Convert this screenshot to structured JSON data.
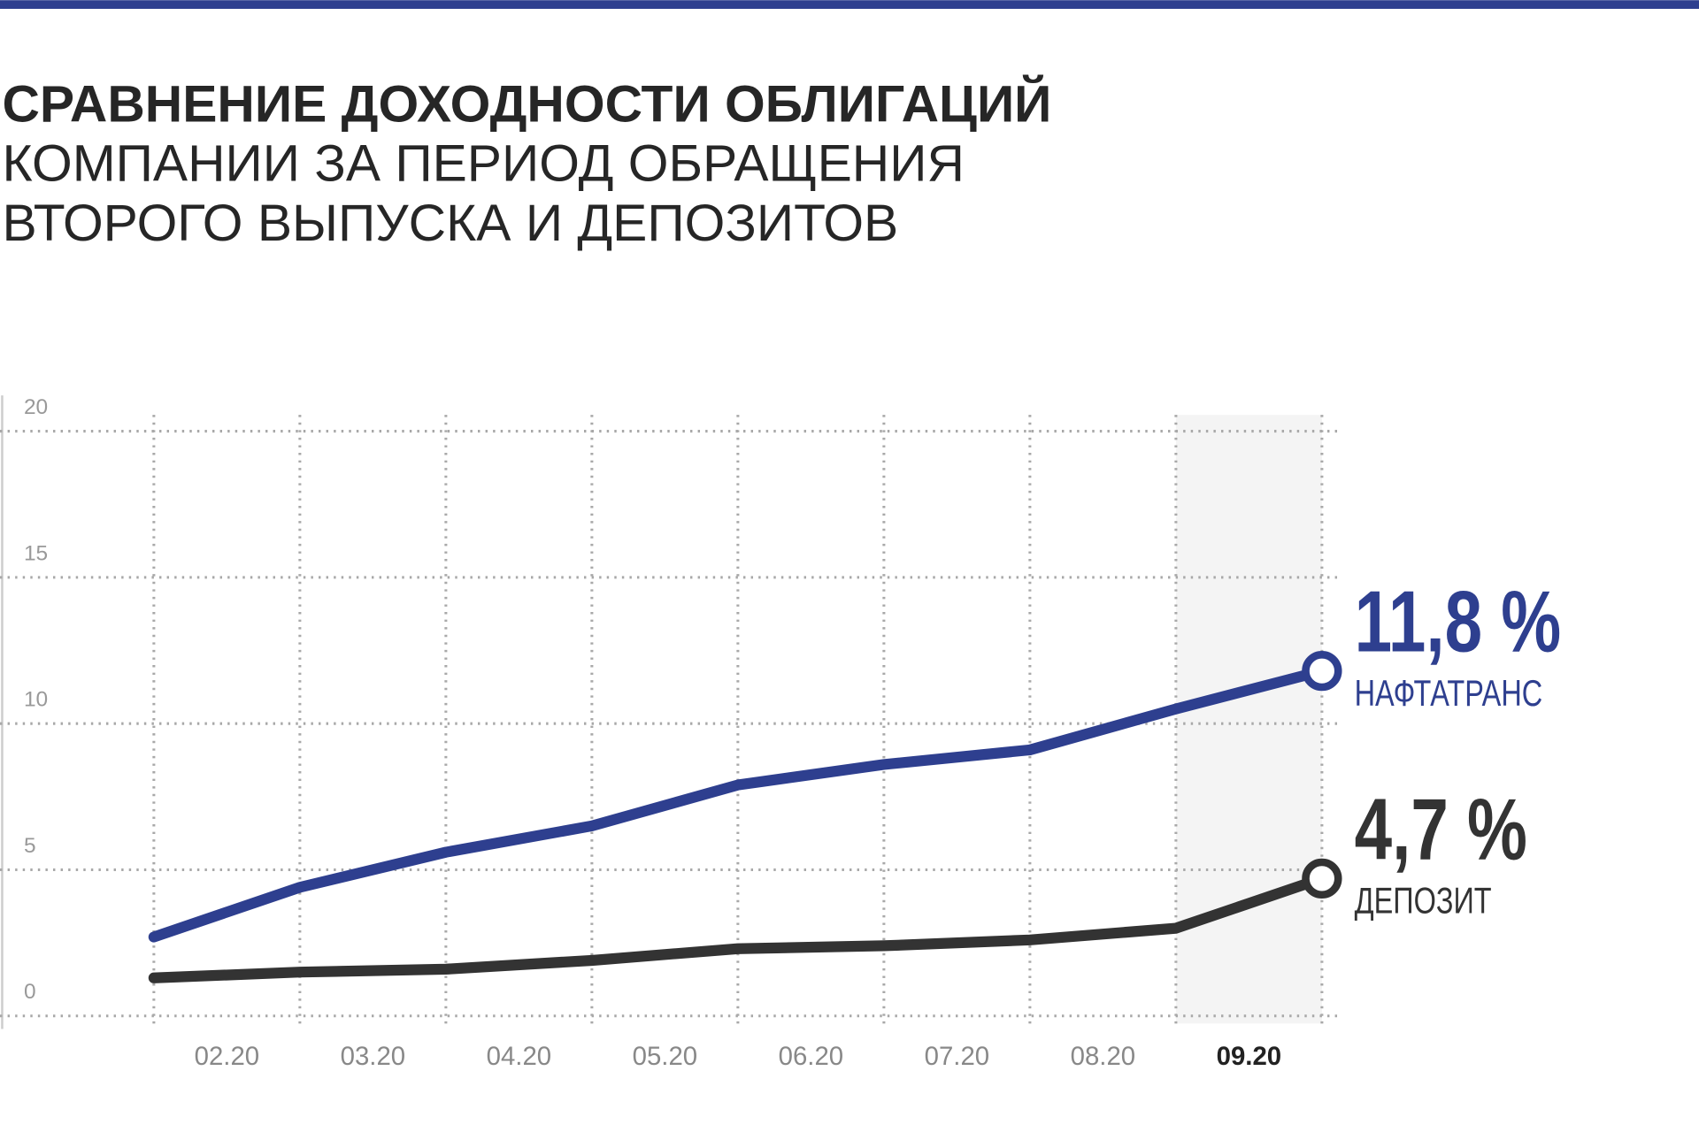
{
  "chart_data": {
    "type": "line",
    "title": "СРАВНЕНИЕ ДОХОДНОСТИ ОБЛИГАЦИЙ",
    "subtitle": [
      "КОМПАНИИ ЗА ПЕРИОД ОБРАЩЕНИЯ",
      "ВТОРОГО ВЫПУСКА И ДЕПОЗИТОВ"
    ],
    "categories": [
      null,
      "02.20",
      "03.20",
      "04.20",
      "05.20",
      "06.20",
      "07.20",
      "08.20",
      "09.20"
    ],
    "series": [
      {
        "name": "НАФТАТРАНС",
        "color": "#2e3f8f",
        "values": [
          2.7,
          4.4,
          5.6,
          6.5,
          7.9,
          8.6,
          9.1,
          10.5,
          11.8
        ],
        "value_labels": [
          null,
          null,
          null,
          null,
          null,
          null,
          null,
          null,
          "11,8 %"
        ]
      },
      {
        "name": "ДЕПОЗИТ",
        "color": "#333333",
        "values": [
          1.3,
          1.5,
          1.6,
          1.9,
          2.3,
          2.4,
          2.6,
          3.0,
          4.7
        ],
        "value_labels": [
          null,
          null,
          null,
          null,
          null,
          null,
          null,
          null,
          "4,7 %"
        ]
      }
    ],
    "ylim": [
      0,
      20
    ],
    "yticks": [
      0,
      5,
      10,
      15,
      20
    ],
    "grid": true
  }
}
